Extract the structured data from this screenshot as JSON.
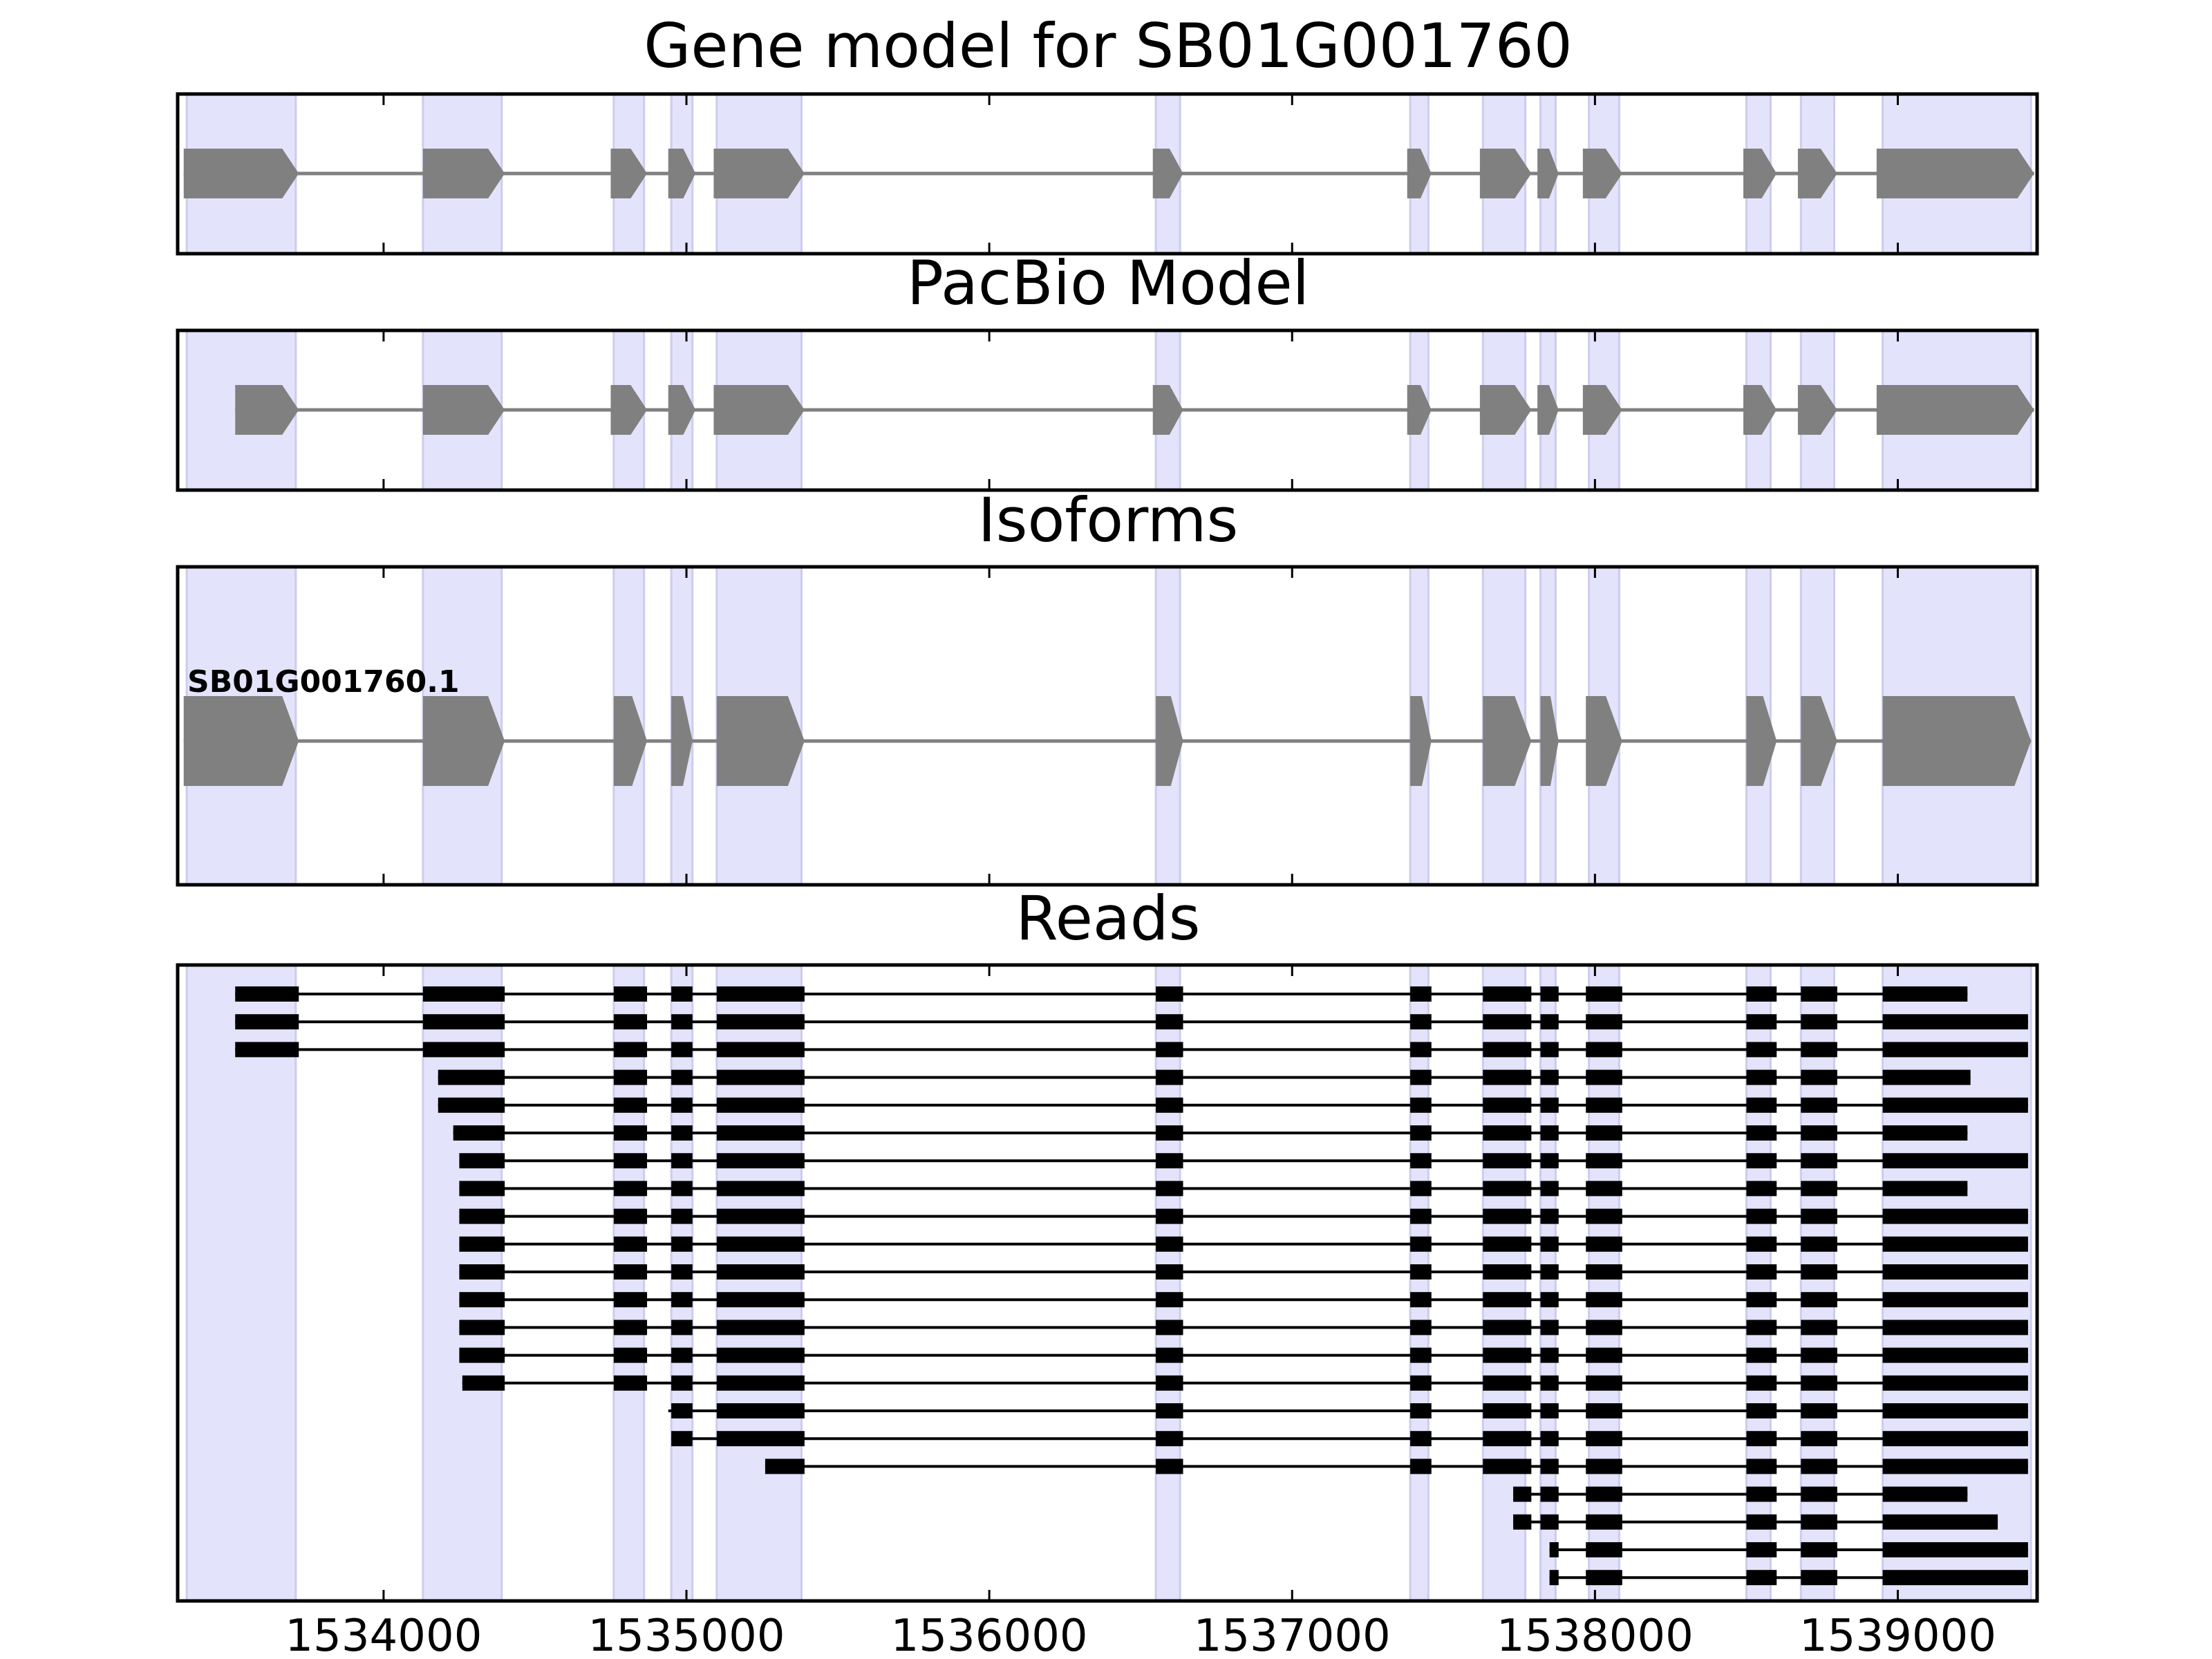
{
  "colors": {
    "band": "#e3e3fb",
    "band_edge": "#ccccee",
    "model": "#808080",
    "intron": "#808080",
    "read": "#000000",
    "frame": "#000000"
  },
  "chart_data": {
    "type": "gene_track",
    "xlim": [
      1533320,
      1539460
    ],
    "xticks": [
      1534000,
      1535000,
      1536000,
      1537000,
      1538000,
      1539000
    ],
    "xtick_labels": [
      "1534000",
      "1535000",
      "1536000",
      "1537000",
      "1538000",
      "1539000"
    ],
    "strand": "+",
    "highlight_regions": [
      [
        1533350,
        1533710
      ],
      [
        1534130,
        1534390
      ],
      [
        1534760,
        1534860
      ],
      [
        1534950,
        1535020
      ],
      [
        1535100,
        1535380
      ],
      [
        1536550,
        1536630
      ],
      [
        1537390,
        1537450
      ],
      [
        1537630,
        1537770
      ],
      [
        1537820,
        1537870
      ],
      [
        1537980,
        1538080
      ],
      [
        1538500,
        1538580
      ],
      [
        1538680,
        1538790
      ],
      [
        1538950,
        1539440
      ]
    ],
    "panels": [
      {
        "key": "gene",
        "title": "Gene model for SB01G001760",
        "exons": [
          [
            1533340,
            1533720
          ],
          [
            1534130,
            1534400
          ],
          [
            1534750,
            1534870
          ],
          [
            1534940,
            1535030
          ],
          [
            1535090,
            1535390
          ],
          [
            1536540,
            1536640
          ],
          [
            1537380,
            1537460
          ],
          [
            1537620,
            1537790
          ],
          [
            1537810,
            1537880
          ],
          [
            1537960,
            1538090
          ],
          [
            1538490,
            1538600
          ],
          [
            1538670,
            1538800
          ],
          [
            1538930,
            1539450
          ]
        ]
      },
      {
        "key": "pacbio",
        "title": "PacBio Model",
        "exons": [
          [
            1533510,
            1533720
          ],
          [
            1534130,
            1534400
          ],
          [
            1534750,
            1534870
          ],
          [
            1534940,
            1535030
          ],
          [
            1535090,
            1535390
          ],
          [
            1536540,
            1536640
          ],
          [
            1537380,
            1537460
          ],
          [
            1537620,
            1537790
          ],
          [
            1537810,
            1537880
          ],
          [
            1537960,
            1538090
          ],
          [
            1538490,
            1538600
          ],
          [
            1538670,
            1538800
          ],
          [
            1538930,
            1539450
          ]
        ]
      },
      {
        "key": "isoforms",
        "title": "Isoforms",
        "isoforms": [
          {
            "label": "SB01G001760.1",
            "exons": [
              [
                1533340,
                1533720
              ],
              [
                1534130,
                1534400
              ],
              [
                1534760,
                1534870
              ],
              [
                1534950,
                1535020
              ],
              [
                1535100,
                1535390
              ],
              [
                1536550,
                1536640
              ],
              [
                1537390,
                1537460
              ],
              [
                1537630,
                1537790
              ],
              [
                1537820,
                1537880
              ],
              [
                1537970,
                1538090
              ],
              [
                1538500,
                1538600
              ],
              [
                1538680,
                1538800
              ],
              [
                1538950,
                1539440
              ]
            ]
          }
        ]
      },
      {
        "key": "reads",
        "title": "Reads",
        "reads": [
          {
            "start": 1533510,
            "end": 1539230
          },
          {
            "start": 1533510,
            "end": 1539430
          },
          {
            "start": 1533510,
            "end": 1539430
          },
          {
            "start": 1534180,
            "end": 1539240
          },
          {
            "start": 1534180,
            "end": 1539430
          },
          {
            "start": 1534230,
            "end": 1539230
          },
          {
            "start": 1534250,
            "end": 1539430
          },
          {
            "start": 1534250,
            "end": 1539230
          },
          {
            "start": 1534250,
            "end": 1539430
          },
          {
            "start": 1534250,
            "end": 1539430
          },
          {
            "start": 1534250,
            "end": 1539430
          },
          {
            "start": 1534250,
            "end": 1539430
          },
          {
            "start": 1534250,
            "end": 1539430
          },
          {
            "start": 1534250,
            "end": 1539430
          },
          {
            "start": 1534260,
            "end": 1539430
          },
          {
            "start": 1534940,
            "end": 1539430
          },
          {
            "start": 1534950,
            "end": 1539430
          },
          {
            "start": 1535260,
            "end": 1539430
          },
          {
            "start": 1537730,
            "end": 1539230
          },
          {
            "start": 1537730,
            "end": 1539330
          },
          {
            "start": 1537850,
            "end": 1539430
          },
          {
            "start": 1537850,
            "end": 1539430
          }
        ]
      }
    ]
  }
}
